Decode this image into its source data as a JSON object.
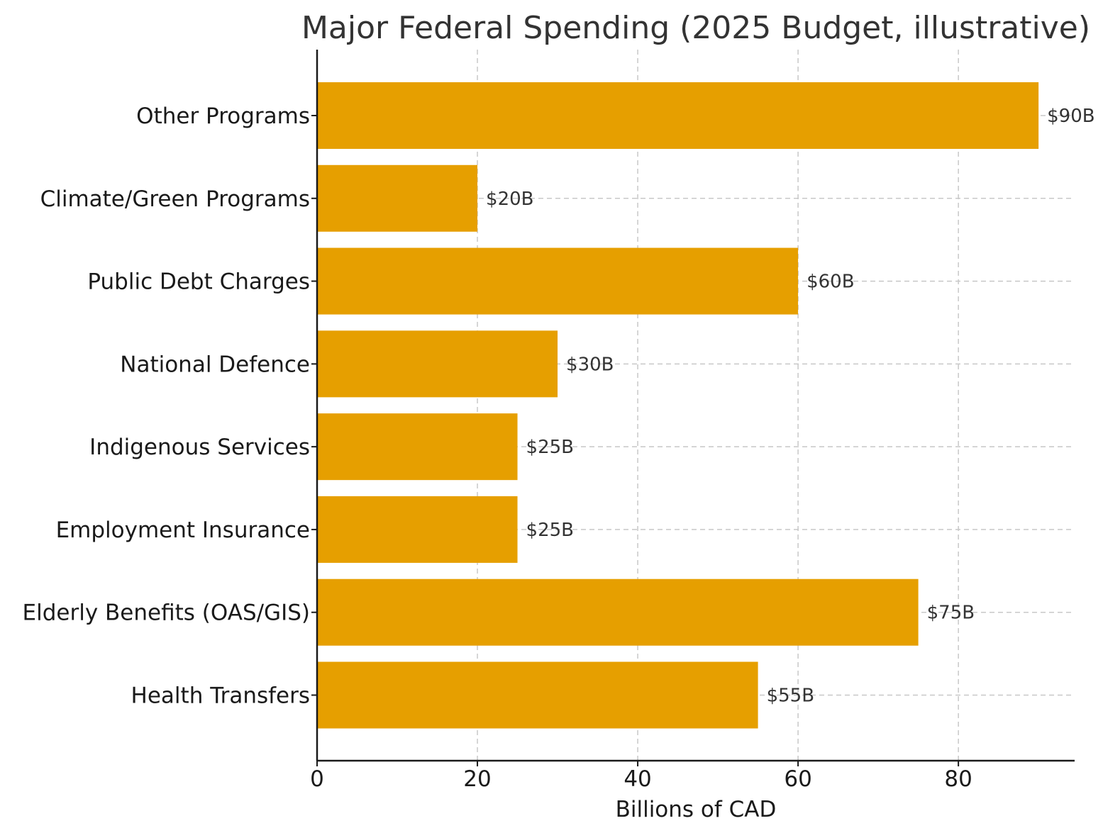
{
  "chart_data": {
    "type": "bar",
    "orientation": "horizontal",
    "title": "Major Federal Spending (2025 Budget, illustrative)",
    "xlabel": "Billions of CAD",
    "ylabel": "",
    "categories": [
      "Health Transfers",
      "Elderly Benefits (OAS/GIS)",
      "Employment Insurance",
      "Indigenous Services",
      "National Defence",
      "Public Debt Charges",
      "Climate/Green Programs",
      "Other Programs"
    ],
    "values": [
      55,
      75,
      25,
      25,
      30,
      60,
      20,
      90
    ],
    "value_labels": [
      "$55B",
      "$75B",
      "$25B",
      "$25B",
      "$30B",
      "$60B",
      "$20B",
      "$90B"
    ],
    "xlim": [
      0,
      94.5
    ],
    "xticks": [
      0,
      20,
      40,
      60,
      80
    ],
    "xtick_labels": [
      "0",
      "20",
      "40",
      "60",
      "80"
    ],
    "grid": true,
    "bar_color": "#E69F00",
    "axis_color": "#1a1a1a",
    "grid_color": "#c8c8c8"
  }
}
